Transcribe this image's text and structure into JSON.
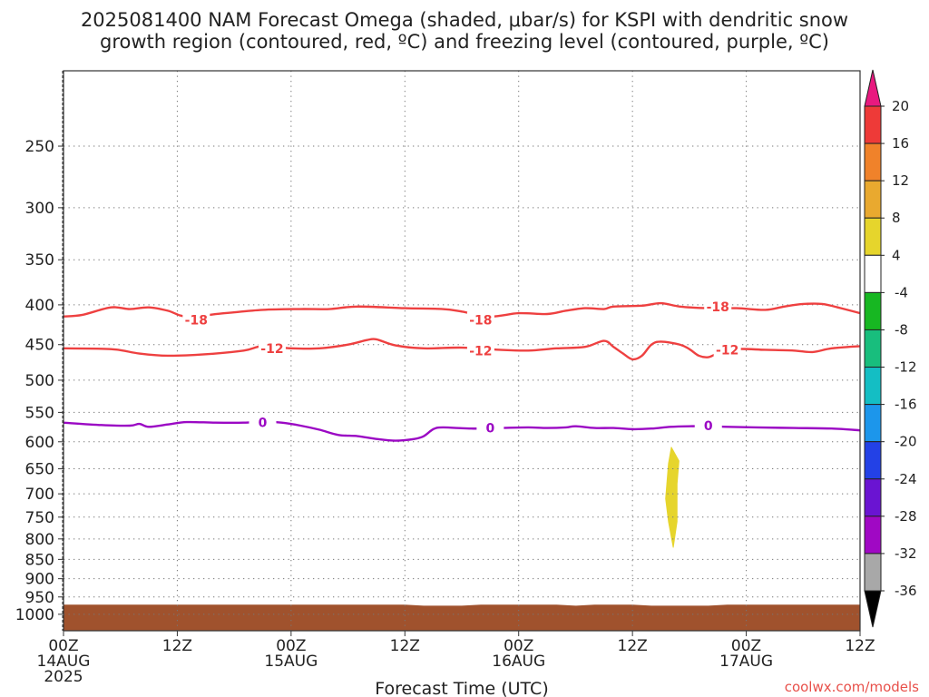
{
  "chart_data": {
    "type": "heatmap",
    "title_lines": [
      "2025081400 NAM Forecast Omega (shaded, μbar/s) for KSPI with dendritic snow",
      "growth region (contoured, red, ºC) and freezing level (contoured, purple, ºC)"
    ],
    "xlabel": "Forecast Time (UTC)",
    "ylabel": "",
    "x_unit": "hours since 2025-08-14 00Z",
    "xlim": [
      0,
      84
    ],
    "y_axis": "pressure (hPa), log scale, inverted",
    "ylim": [
      1050,
      200
    ],
    "y_ticks": [
      250,
      300,
      350,
      400,
      450,
      500,
      550,
      600,
      650,
      700,
      750,
      800,
      850,
      900,
      950,
      1000
    ],
    "x_ticks": [
      {
        "x": 0,
        "lines": [
          "00Z",
          "14AUG",
          "2025"
        ]
      },
      {
        "x": 12,
        "lines": [
          "12Z"
        ]
      },
      {
        "x": 24,
        "lines": [
          "00Z",
          "15AUG"
        ]
      },
      {
        "x": 36,
        "lines": [
          "12Z"
        ]
      },
      {
        "x": 48,
        "lines": [
          "00Z",
          "16AUG"
        ]
      },
      {
        "x": 60,
        "lines": [
          "12Z"
        ]
      },
      {
        "x": 72,
        "lines": [
          "00Z",
          "17AUG"
        ]
      },
      {
        "x": 84,
        "lines": [
          "12Z"
        ]
      }
    ],
    "grid": true,
    "credit": "coolwx.com/models",
    "colorbar": {
      "placement": "right",
      "labels": [
        "20",
        "16",
        "12",
        "8",
        "4",
        "-4",
        "-8",
        "-12",
        "-16",
        "-20",
        "-24",
        "-28",
        "-32",
        "-36"
      ],
      "colors": [
        "#e8197f",
        "#ee3a38",
        "#f0822a",
        "#e9a92f",
        "#e6d52c",
        "#ffffff",
        "#17b722",
        "#18be7d",
        "#14bec4",
        "#1c96eb",
        "#2341e6",
        "#6a14d2",
        "#a008c4",
        "#a8a8a8",
        "#000000"
      ]
    },
    "shaded": [
      {
        "name": "omega 4-8",
        "color": "#e6d52c",
        "polygon": [
          [
            64.1,
            610
          ],
          [
            64.9,
            635
          ],
          [
            64.7,
            680
          ],
          [
            64.7,
            760
          ],
          [
            64.3,
            820
          ],
          [
            63.8,
            760
          ],
          [
            63.5,
            710
          ],
          [
            63.8,
            640
          ]
        ]
      }
    ],
    "surface": {
      "color": "#a0522d",
      "bottom": 1050,
      "top": [
        [
          0,
          972
        ],
        [
          36,
          972
        ],
        [
          38,
          975
        ],
        [
          42,
          975
        ],
        [
          44,
          972
        ],
        [
          52,
          972
        ],
        [
          54,
          975
        ],
        [
          56,
          972
        ],
        [
          60,
          972
        ],
        [
          62,
          975
        ],
        [
          68,
          975
        ],
        [
          70,
          972
        ],
        [
          84,
          972
        ]
      ]
    },
    "series": [
      {
        "name": "-18",
        "color": "#ee4040",
        "points": [
          [
            0,
            414
          ],
          [
            2,
            412
          ],
          [
            5,
            403
          ],
          [
            7,
            405
          ],
          [
            9,
            403
          ],
          [
            11,
            407
          ],
          [
            13,
            414
          ],
          [
            17,
            410
          ],
          [
            21,
            406
          ],
          [
            25,
            405
          ],
          [
            28,
            405
          ],
          [
            31,
            402
          ],
          [
            36,
            404
          ],
          [
            40,
            405
          ],
          [
            42,
            408
          ],
          [
            45,
            414
          ],
          [
            48,
            410
          ],
          [
            51,
            411
          ],
          [
            53,
            407
          ],
          [
            55,
            404
          ],
          [
            57,
            405
          ],
          [
            58,
            402
          ],
          [
            61,
            401
          ],
          [
            63,
            398
          ],
          [
            65,
            402
          ],
          [
            68,
            404
          ],
          [
            71,
            404
          ],
          [
            74,
            406
          ],
          [
            76,
            402
          ],
          [
            78,
            399
          ],
          [
            80,
            399
          ],
          [
            82,
            404
          ],
          [
            84,
            410
          ]
        ],
        "labels": [
          [
            14,
            418
          ],
          [
            44,
            418
          ],
          [
            69,
            402
          ]
        ]
      },
      {
        "name": "-12",
        "color": "#ee4040",
        "points": [
          [
            0,
            455
          ],
          [
            5,
            456
          ],
          [
            8,
            462
          ],
          [
            11,
            465
          ],
          [
            15,
            463
          ],
          [
            19,
            458
          ],
          [
            21,
            452
          ],
          [
            24,
            455
          ],
          [
            27,
            455
          ],
          [
            30,
            450
          ],
          [
            32,
            444
          ],
          [
            33,
            443
          ],
          [
            35,
            451
          ],
          [
            38,
            455
          ],
          [
            42,
            454
          ],
          [
            46,
            457
          ],
          [
            49,
            458
          ],
          [
            52,
            455
          ],
          [
            55,
            453
          ],
          [
            57,
            445
          ],
          [
            58,
            453
          ],
          [
            59,
            462
          ],
          [
            60,
            470
          ],
          [
            61,
            465
          ],
          [
            62,
            450
          ],
          [
            63,
            446
          ],
          [
            65,
            450
          ],
          [
            66,
            456
          ],
          [
            67,
            465
          ],
          [
            68,
            467
          ],
          [
            69,
            462
          ],
          [
            71,
            456
          ],
          [
            74,
            457
          ],
          [
            77,
            458
          ],
          [
            79,
            460
          ],
          [
            81,
            455
          ],
          [
            84,
            452
          ]
        ],
        "labels": [
          [
            22,
            455
          ],
          [
            44,
            458
          ],
          [
            70,
            457
          ]
        ]
      },
      {
        "name": "0",
        "color": "#9b08c4",
        "points": [
          [
            0,
            567
          ],
          [
            4,
            571
          ],
          [
            7,
            572
          ],
          [
            8,
            569
          ],
          [
            9,
            574
          ],
          [
            11,
            570
          ],
          [
            13,
            566
          ],
          [
            16,
            567
          ],
          [
            19,
            567
          ],
          [
            21,
            565
          ],
          [
            23,
            567
          ],
          [
            25,
            572
          ],
          [
            27,
            579
          ],
          [
            29,
            588
          ],
          [
            31,
            590
          ],
          [
            33,
            595
          ],
          [
            35,
            598
          ],
          [
            37,
            595
          ],
          [
            38,
            590
          ],
          [
            39,
            578
          ],
          [
            40,
            575
          ],
          [
            43,
            577
          ],
          [
            46,
            576
          ],
          [
            49,
            575
          ],
          [
            51,
            576
          ],
          [
            53,
            575
          ],
          [
            54,
            573
          ],
          [
            56,
            576
          ],
          [
            58,
            576
          ],
          [
            60,
            578
          ],
          [
            62,
            577
          ],
          [
            64,
            574
          ],
          [
            66,
            573
          ],
          [
            68,
            573
          ],
          [
            70,
            574
          ],
          [
            73,
            575
          ],
          [
            77,
            576
          ],
          [
            81,
            577
          ],
          [
            84,
            580
          ]
        ],
        "labels": [
          [
            21,
            567
          ],
          [
            45,
            576
          ],
          [
            68,
            572
          ]
        ]
      }
    ]
  }
}
